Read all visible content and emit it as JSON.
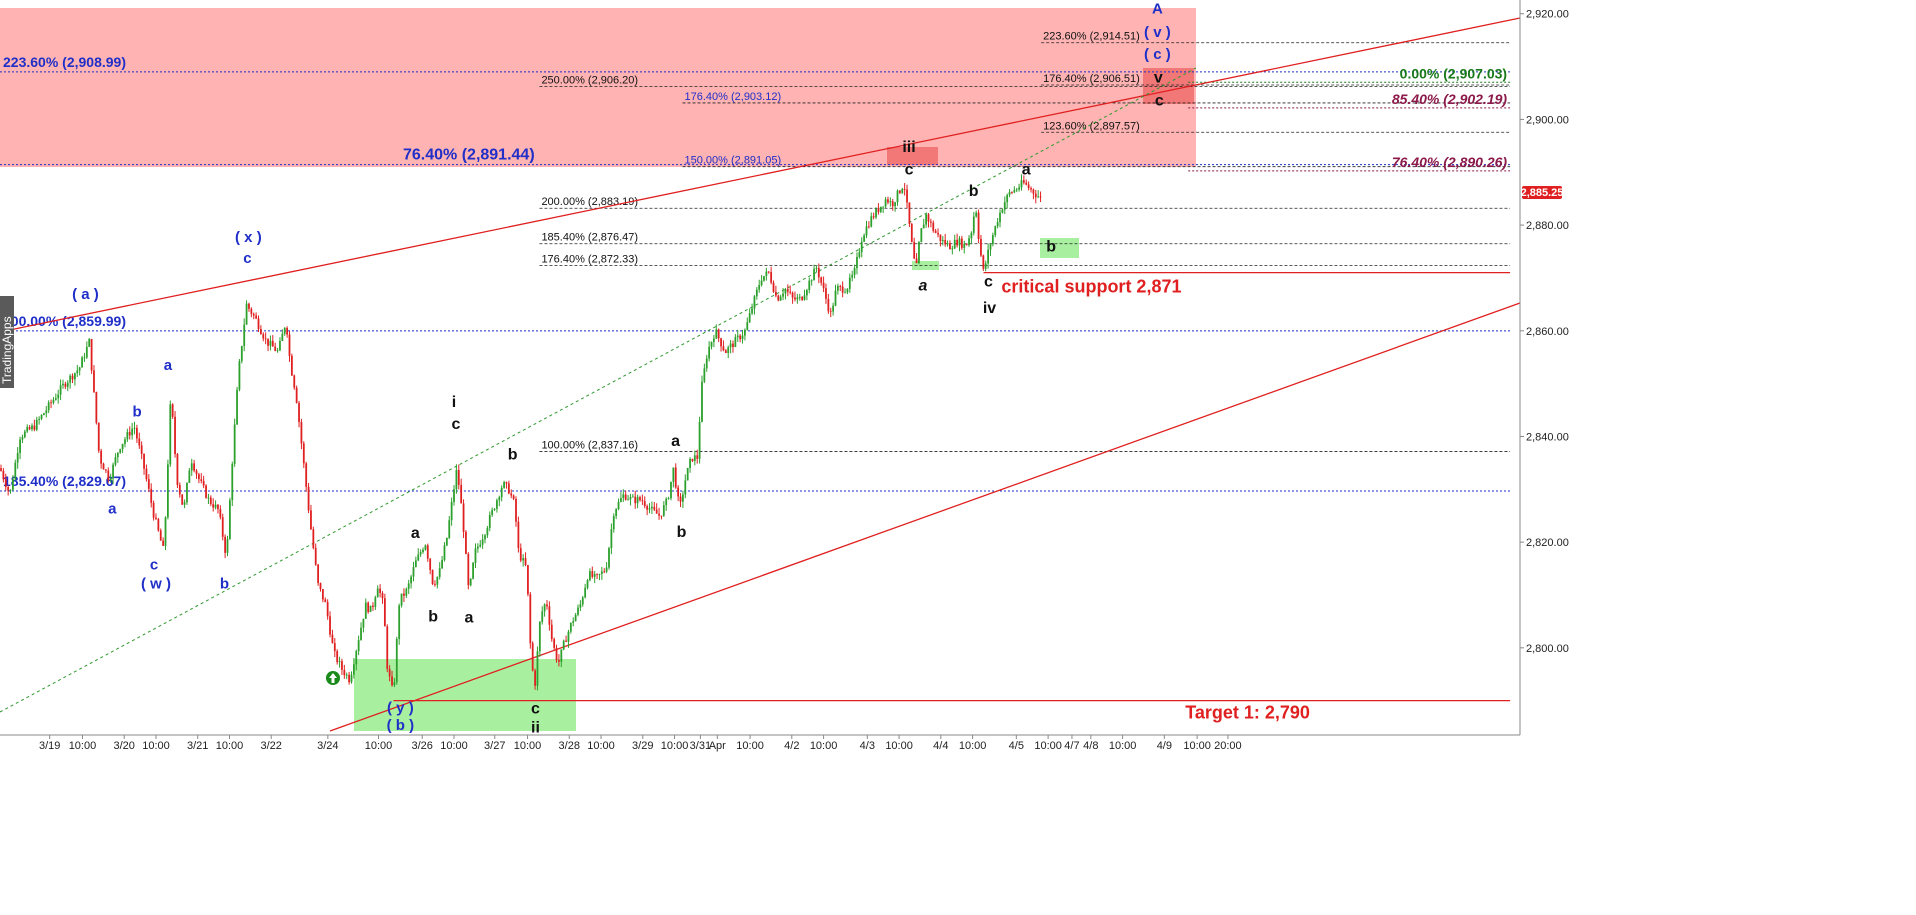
{
  "colors": {
    "up_candle": "#2ca02c",
    "down_candle": "#e02020",
    "channel_line": "#e02020",
    "green_trend": "#2f9a2f",
    "resistance_zone": "#ffb3b3",
    "support_zone": "#a8f0a0",
    "blue_fib": "#1f2fc8",
    "price_tag": "#e02020"
  },
  "price_tag": "2,885.25",
  "brand": "TradingApps",
  "chart_data": {
    "type": "candlestick",
    "y_ticks": [
      "2,920.00",
      "2,900.00",
      "2,880.00",
      "2,860.00",
      "2,840.00",
      "2,820.00",
      "2,800.00"
    ],
    "y_tick_values": [
      2920,
      2900,
      2880,
      2860,
      2840,
      2820,
      2800
    ],
    "ylim": [
      2783.5,
      2922.6
    ],
    "xlim": [
      0,
      1530
    ],
    "x_ticks": [
      {
        "label": "3/19",
        "x": 50
      },
      {
        "label": "10:00",
        "x": 83
      },
      {
        "label": "3/20",
        "x": 125
      },
      {
        "label": "10:00",
        "x": 157
      },
      {
        "label": "3/21",
        "x": 199
      },
      {
        "label": "10:00",
        "x": 231
      },
      {
        "label": "3/22",
        "x": 273
      },
      {
        "label": "3/24",
        "x": 330
      },
      {
        "label": "10:00",
        "x": 381
      },
      {
        "label": "3/26",
        "x": 425
      },
      {
        "label": "10:00",
        "x": 457
      },
      {
        "label": "3/27",
        "x": 498
      },
      {
        "label": "10:00",
        "x": 531
      },
      {
        "label": "3/28",
        "x": 573
      },
      {
        "label": "10:00",
        "x": 605
      },
      {
        "label": "3/29",
        "x": 647
      },
      {
        "label": "10:00",
        "x": 679
      },
      {
        "label": "3/31",
        "x": 705
      },
      {
        "label": "Apr",
        "x": 722
      },
      {
        "label": "10:00",
        "x": 755
      },
      {
        "label": "4/2",
        "x": 797
      },
      {
        "label": "10:00",
        "x": 829
      },
      {
        "label": "4/3",
        "x": 873
      },
      {
        "label": "10:00",
        "x": 905
      },
      {
        "label": "4/4",
        "x": 947
      },
      {
        "label": "10:00",
        "x": 979
      },
      {
        "label": "4/5",
        "x": 1023
      },
      {
        "label": "10:00",
        "x": 1055
      },
      {
        "label": "4/7",
        "x": 1079
      },
      {
        "label": "4/8",
        "x": 1098
      },
      {
        "label": "10:00",
        "x": 1130
      },
      {
        "label": "4/9",
        "x": 1172
      },
      {
        "label": "10:00",
        "x": 1205
      },
      {
        "label": "20:00",
        "x": 1236
      }
    ],
    "price_path": [
      [
        0,
        2834
      ],
      [
        10,
        2829
      ],
      [
        20,
        2840
      ],
      [
        35,
        2842
      ],
      [
        50,
        2846
      ],
      [
        65,
        2850
      ],
      [
        80,
        2853
      ],
      [
        90,
        2858
      ],
      [
        100,
        2836
      ],
      [
        110,
        2832
      ],
      [
        120,
        2838
      ],
      [
        135,
        2842
      ],
      [
        145,
        2834
      ],
      [
        155,
        2825
      ],
      [
        165,
        2818
      ],
      [
        172,
        2848
      ],
      [
        178,
        2832
      ],
      [
        185,
        2826
      ],
      [
        192,
        2836
      ],
      [
        200,
        2832
      ],
      [
        210,
        2828
      ],
      [
        220,
        2826
      ],
      [
        228,
        2817
      ],
      [
        234,
        2836
      ],
      [
        240,
        2852
      ],
      [
        248,
        2865
      ],
      [
        258,
        2862
      ],
      [
        268,
        2858
      ],
      [
        280,
        2856
      ],
      [
        288,
        2862
      ],
      [
        292,
        2854
      ],
      [
        298,
        2848
      ],
      [
        305,
        2836
      ],
      [
        312,
        2824
      ],
      [
        320,
        2812
      ],
      [
        328,
        2808
      ],
      [
        336,
        2799
      ],
      [
        344,
        2796
      ],
      [
        352,
        2794
      ],
      [
        360,
        2801
      ],
      [
        368,
        2808
      ],
      [
        374,
        2807
      ],
      [
        380,
        2812
      ],
      [
        386,
        2808
      ],
      [
        390,
        2796
      ],
      [
        396,
        2791
      ],
      [
        402,
        2809
      ],
      [
        410,
        2811
      ],
      [
        418,
        2816
      ],
      [
        428,
        2820
      ],
      [
        436,
        2812
      ],
      [
        442,
        2814
      ],
      [
        450,
        2821
      ],
      [
        456,
        2829
      ],
      [
        460,
        2834
      ],
      [
        466,
        2824
      ],
      [
        472,
        2810
      ],
      [
        478,
        2818
      ],
      [
        488,
        2822
      ],
      [
        496,
        2826
      ],
      [
        506,
        2831
      ],
      [
        512,
        2830
      ],
      [
        518,
        2827
      ],
      [
        522,
        2818
      ],
      [
        530,
        2815
      ],
      [
        534,
        2800
      ],
      [
        538,
        2792
      ],
      [
        544,
        2806
      ],
      [
        550,
        2809
      ],
      [
        556,
        2801
      ],
      [
        562,
        2797
      ],
      [
        568,
        2801
      ],
      [
        576,
        2805
      ],
      [
        584,
        2808
      ],
      [
        592,
        2814
      ],
      [
        600,
        2813
      ],
      [
        610,
        2815
      ],
      [
        618,
        2826
      ],
      [
        628,
        2829
      ],
      [
        636,
        2828
      ],
      [
        646,
        2828
      ],
      [
        656,
        2826
      ],
      [
        664,
        2825
      ],
      [
        672,
        2828
      ],
      [
        678,
        2834
      ],
      [
        684,
        2826
      ],
      [
        690,
        2832
      ],
      [
        696,
        2836
      ],
      [
        702,
        2836
      ],
      [
        706,
        2849
      ],
      [
        712,
        2856
      ],
      [
        720,
        2860
      ],
      [
        730,
        2856
      ],
      [
        740,
        2858
      ],
      [
        750,
        2860
      ],
      [
        758,
        2865
      ],
      [
        766,
        2870
      ],
      [
        774,
        2871
      ],
      [
        782,
        2866
      ],
      [
        790,
        2868
      ],
      [
        798,
        2866
      ],
      [
        806,
        2866
      ],
      [
        814,
        2869
      ],
      [
        822,
        2872
      ],
      [
        830,
        2867
      ],
      [
        836,
        2863
      ],
      [
        842,
        2868
      ],
      [
        852,
        2868
      ],
      [
        860,
        2871
      ],
      [
        868,
        2878
      ],
      [
        876,
        2881
      ],
      [
        884,
        2883
      ],
      [
        892,
        2885
      ],
      [
        898,
        2884
      ],
      [
        904,
        2886
      ],
      [
        910,
        2888
      ],
      [
        914,
        2882
      ],
      [
        918,
        2876
      ],
      [
        922,
        2871
      ],
      [
        926,
        2878
      ],
      [
        932,
        2882
      ],
      [
        940,
        2879
      ],
      [
        948,
        2877
      ],
      [
        956,
        2876
      ],
      [
        964,
        2877
      ],
      [
        972,
        2876
      ],
      [
        978,
        2879
      ],
      [
        982,
        2884
      ],
      [
        986,
        2876
      ],
      [
        990,
        2871
      ],
      [
        996,
        2876
      ],
      [
        1004,
        2881
      ],
      [
        1010,
        2884
      ],
      [
        1016,
        2886
      ],
      [
        1024,
        2887
      ],
      [
        1030,
        2888
      ],
      [
        1036,
        2887
      ],
      [
        1042,
        2886
      ],
      [
        1048,
        2885
      ]
    ],
    "fib_levels": [
      {
        "label": "223.60% (2,914.51)",
        "value": 2914.51,
        "x1": 1048
      },
      {
        "label": "250.00% (2,906.20)",
        "value": 2906.2,
        "x1": 543
      },
      {
        "label": "176.40% (2,906.51)",
        "value": 2906.51,
        "x1": 1048
      },
      {
        "label": "176.40% (2,903.12)",
        "value": 2903.12,
        "x1": 687
      },
      {
        "label": "123.60% (2,897.57)",
        "value": 2897.57,
        "x1": 1048
      },
      {
        "label": "150.00% (2,891.05)",
        "value": 2891.05,
        "x1": 687
      },
      {
        "label": "200.00% (2,883.19)",
        "value": 2883.19,
        "x1": 543
      },
      {
        "label": "185.40% (2,876.47)",
        "value": 2876.47,
        "x1": 543
      },
      {
        "label": "176.40% (2,872.33)",
        "value": 2872.33,
        "x1": 543
      },
      {
        "label": "100.00% (2,837.16)",
        "value": 2837.16,
        "x1": 543
      }
    ],
    "blue_fibs": [
      {
        "label": "223.60% (2,908.99)",
        "value": 2908.99
      },
      {
        "label": "76.40% (2,891.44)",
        "value": 2891.44
      },
      {
        "label": "200.00% (2,859.99)",
        "value": 2859.99
      },
      {
        "label": "185.40% (2,829.67)",
        "value": 2829.67
      }
    ],
    "right_fibs": [
      {
        "label": "0.00% (2,907.03)",
        "value": 2907.03,
        "style": "green"
      },
      {
        "label": "85.40% (2,902.19)",
        "value": 2902.19,
        "style": "purple"
      },
      {
        "label": "76.40% (2,890.26)",
        "value": 2890.26,
        "style": "purple"
      }
    ],
    "horizontal_lines": [
      {
        "name": "critical-support-line",
        "value": 2871,
        "x_from": 990
      },
      {
        "name": "target-line",
        "value": 2790,
        "x_from": 396
      }
    ],
    "annotations": {
      "critical_support": "critical  support 2,871",
      "target": "Target 1: 2,790"
    },
    "wave_labels": [
      {
        "text": "A",
        "x": 1165,
        "y": 2920.0,
        "color": "blue"
      },
      {
        "text": "( v )",
        "x": 1165,
        "y": 2915.6,
        "color": "blue"
      },
      {
        "text": "( c )",
        "x": 1165,
        "y": 2911.4,
        "color": "blue"
      },
      {
        "text": "v",
        "x": 1166,
        "y": 2907.0,
        "color": "black"
      },
      {
        "text": "c",
        "x": 1167,
        "y": 2902.6,
        "color": "black"
      },
      {
        "text": "iii",
        "x": 915,
        "y": 2893.8,
        "color": "black"
      },
      {
        "text": "c",
        "x": 915,
        "y": 2889.6,
        "color": "black"
      },
      {
        "text": "a",
        "x": 1033,
        "y": 2889.6,
        "color": "black"
      },
      {
        "text": "b",
        "x": 980,
        "y": 2885.5,
        "color": "black"
      },
      {
        "text": "b",
        "x": 1058,
        "y": 2875.0,
        "color": "black"
      },
      {
        "text": "a",
        "x": 929,
        "y": 2867.6,
        "color": "black",
        "italic": true
      },
      {
        "text": "c",
        "x": 995,
        "y": 2868.4,
        "color": "black"
      },
      {
        "text": "iv",
        "x": 996,
        "y": 2863.4,
        "color": "black"
      },
      {
        "text": "( x )",
        "x": 250,
        "y": 2876.8,
        "color": "blue"
      },
      {
        "text": "c",
        "x": 249,
        "y": 2872.8,
        "color": "blue"
      },
      {
        "text": "( a )",
        "x": 86,
        "y": 2866.0,
        "color": "blue"
      },
      {
        "text": "a",
        "x": 169,
        "y": 2852.6,
        "color": "blue"
      },
      {
        "text": "b",
        "x": 138,
        "y": 2843.8,
        "color": "blue"
      },
      {
        "text": "a",
        "x": 113,
        "y": 2825.4,
        "color": "blue"
      },
      {
        "text": "c",
        "x": 155,
        "y": 2814.8,
        "color": "blue"
      },
      {
        "text": "( w )",
        "x": 157,
        "y": 2811.2,
        "color": "blue"
      },
      {
        "text": "b",
        "x": 226,
        "y": 2811.2,
        "color": "blue"
      },
      {
        "text": "i",
        "x": 457,
        "y": 2845.6,
        "color": "black"
      },
      {
        "text": "c",
        "x": 459,
        "y": 2841.4,
        "color": "black"
      },
      {
        "text": "b",
        "x": 516,
        "y": 2835.6,
        "color": "black"
      },
      {
        "text": "a",
        "x": 418,
        "y": 2820.8,
        "color": "black"
      },
      {
        "text": "b",
        "x": 436,
        "y": 2805.0,
        "color": "black"
      },
      {
        "text": "a",
        "x": 472,
        "y": 2804.8,
        "color": "black"
      },
      {
        "text": "a",
        "x": 680,
        "y": 2838.2,
        "color": "black"
      },
      {
        "text": "b",
        "x": 686,
        "y": 2821.0,
        "color": "black"
      },
      {
        "text": "( y )",
        "x": 403,
        "y": 2787.8,
        "color": "blue"
      },
      {
        "text": "( b )",
        "x": 403,
        "y": 2784.4,
        "color": "blue"
      },
      {
        "text": "c",
        "x": 539,
        "y": 2787.6,
        "color": "black"
      },
      {
        "text": "ii",
        "x": 539,
        "y": 2784.0,
        "color": "black"
      }
    ]
  }
}
